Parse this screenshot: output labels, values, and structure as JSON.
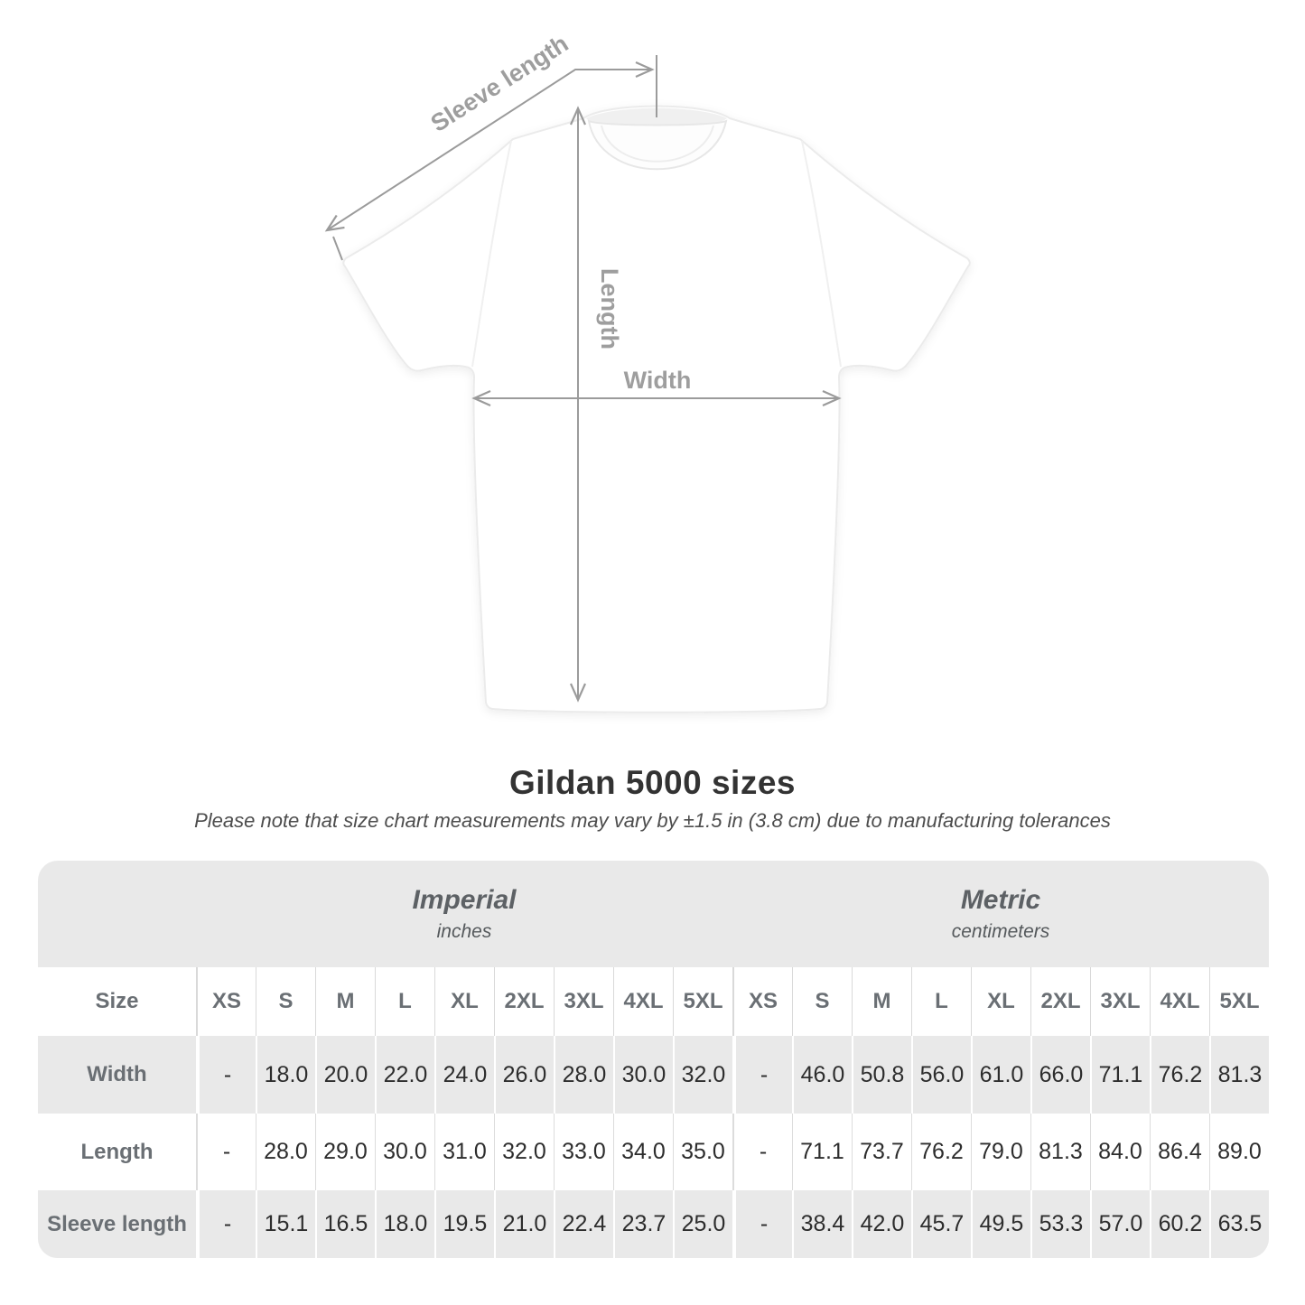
{
  "title": "Gildan 5000 sizes",
  "subtitle": "Please note that size chart measurements may vary by ±1.5 in (3.8 cm) due to manufacturing tolerances",
  "diagram": {
    "labels": {
      "sleeve_length": "Sleeve length",
      "length": "Length",
      "width": "Width"
    },
    "annotation_color": "#9b9b9b",
    "shirt_color": "#ffffff"
  },
  "colors": {
    "table_background": "#e9e9e9",
    "row_white": "#ffffff",
    "header_text": "#6a6f74",
    "value_text": "#2d2d2d",
    "title_text": "#333333"
  },
  "chart_data": {
    "type": "table",
    "title": "Gildan 5000 sizes",
    "corner_label": "Size",
    "unit_groups": [
      {
        "label": "Imperial",
        "sublabel": "inches"
      },
      {
        "label": "Metric",
        "sublabel": "centimeters"
      }
    ],
    "sizes": [
      "XS",
      "S",
      "M",
      "L",
      "XL",
      "2XL",
      "3XL",
      "4XL",
      "5XL"
    ],
    "rows": [
      {
        "label": "Width",
        "imperial": [
          "-",
          "18.0",
          "20.0",
          "22.0",
          "24.0",
          "26.0",
          "28.0",
          "30.0",
          "32.0"
        ],
        "metric": [
          "-",
          "46.0",
          "50.8",
          "56.0",
          "61.0",
          "66.0",
          "71.1",
          "76.2",
          "81.3"
        ]
      },
      {
        "label": "Length",
        "imperial": [
          "-",
          "28.0",
          "29.0",
          "30.0",
          "31.0",
          "32.0",
          "33.0",
          "34.0",
          "35.0"
        ],
        "metric": [
          "-",
          "71.1",
          "73.7",
          "76.2",
          "79.0",
          "81.3",
          "84.0",
          "86.4",
          "89.0"
        ]
      },
      {
        "label": "Sleeve length",
        "imperial": [
          "-",
          "15.1",
          "16.5",
          "18.0",
          "19.5",
          "21.0",
          "22.4",
          "23.7",
          "25.0"
        ],
        "metric": [
          "-",
          "38.4",
          "42.0",
          "45.7",
          "49.5",
          "53.3",
          "57.0",
          "60.2",
          "63.5"
        ]
      }
    ]
  }
}
